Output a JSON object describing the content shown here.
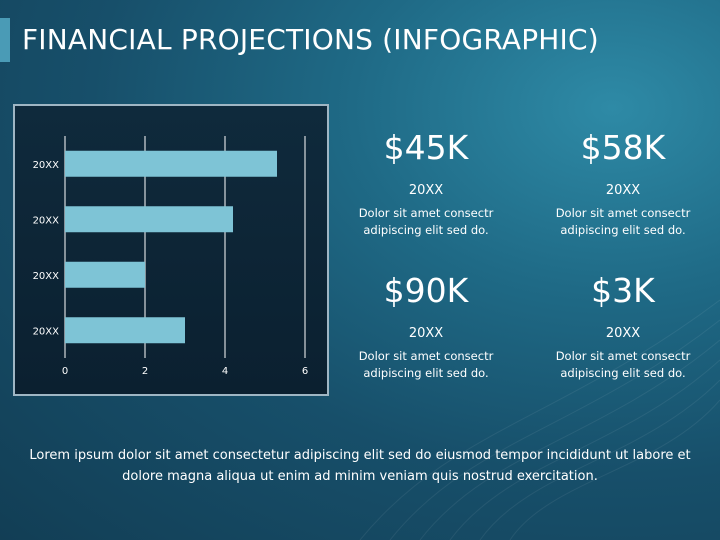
{
  "slide": {
    "title": "FINANCIAL PROJECTIONS (INFOGRAPHIC)",
    "footer": "Lorem ipsum dolor sit amet consectetur adipiscing elit sed do eiusmod tempor incididunt ut labore et dolore magna aliqua ut enim ad minim veniam quis nostrud exercitation."
  },
  "stats": [
    {
      "value": "$45K",
      "year": "20XX",
      "desc_line1": "Dolor sit amet consectr",
      "desc_line2": "adipiscing elit sed do."
    },
    {
      "value": "$58K",
      "year": "20XX",
      "desc_line1": "Dolor sit amet consectr",
      "desc_line2": "adipiscing elit sed do."
    },
    {
      "value": "$90K",
      "year": "20XX",
      "desc_line1": "Dolor sit amet consectr",
      "desc_line2": "adipiscing elit sed do."
    },
    {
      "value": "$3K",
      "year": "20XX",
      "desc_line1": "Dolor sit amet consectr",
      "desc_line2": "adipiscing elit sed do."
    }
  ],
  "colors": {
    "bar": "#7ec4d6",
    "grid": "#ffffff",
    "tick_text": "#ffffff"
  },
  "chart_data": {
    "type": "bar",
    "orientation": "horizontal",
    "categories": [
      "20XX",
      "20XX",
      "20XX",
      "20XX"
    ],
    "values": [
      5.3,
      4.2,
      2.0,
      3.0
    ],
    "xlim": [
      0,
      6
    ],
    "xticks": [
      0,
      2,
      4,
      6
    ],
    "title": "",
    "xlabel": "",
    "ylabel": "",
    "grid": "vertical",
    "legend": "none"
  }
}
